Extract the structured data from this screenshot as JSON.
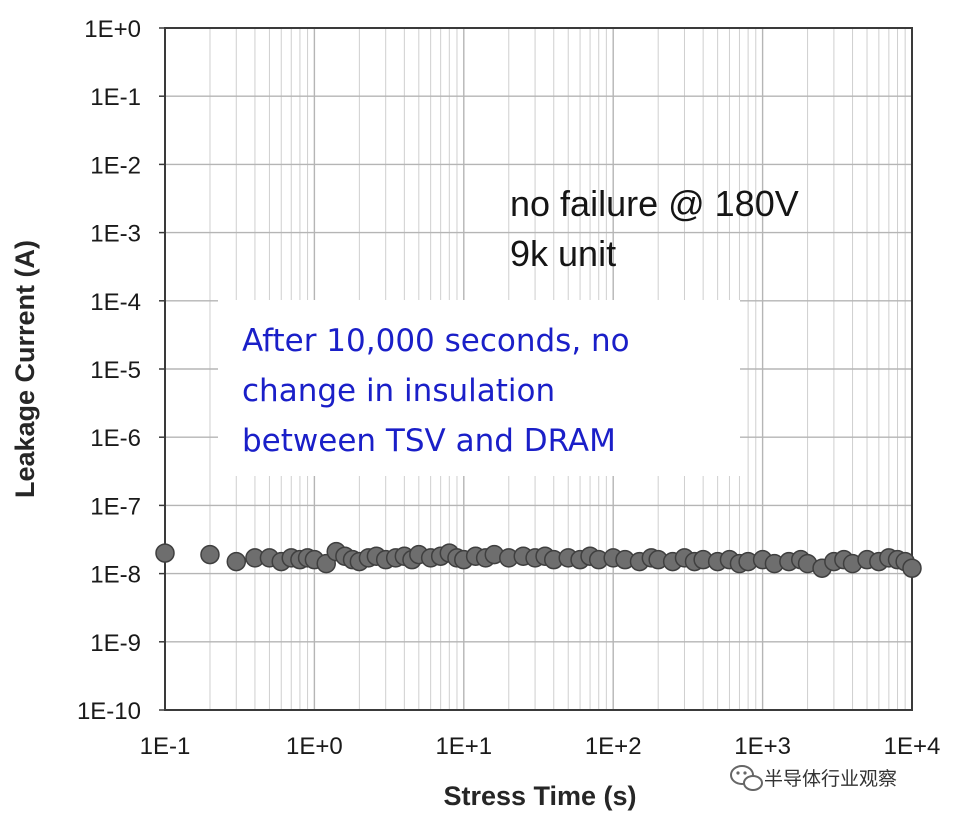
{
  "chart_data": {
    "type": "scatter",
    "xlabel": "Stress Time (s)",
    "ylabel": "Leakage Current (A)",
    "x_scale": "log",
    "y_scale": "log",
    "xlim": [
      0.1,
      10000
    ],
    "ylim": [
      1e-10,
      1
    ],
    "x_ticks": [
      {
        "value": 0.1,
        "label": "1E-1"
      },
      {
        "value": 1,
        "label": "1E+0"
      },
      {
        "value": 10,
        "label": "1E+1"
      },
      {
        "value": 100,
        "label": "1E+2"
      },
      {
        "value": 1000,
        "label": "1E+3"
      },
      {
        "value": 10000,
        "label": "1E+4"
      }
    ],
    "y_ticks": [
      {
        "value": 1,
        "label": "1E+0"
      },
      {
        "value": 0.1,
        "label": "1E-1"
      },
      {
        "value": 0.01,
        "label": "1E-2"
      },
      {
        "value": 0.001,
        "label": "1E-3"
      },
      {
        "value": 0.0001,
        "label": "1E-4"
      },
      {
        "value": 1e-05,
        "label": "1E-5"
      },
      {
        "value": 1e-06,
        "label": "1E-6"
      },
      {
        "value": 1e-07,
        "label": "1E-7"
      },
      {
        "value": 1e-08,
        "label": "1E-8"
      },
      {
        "value": 1e-09,
        "label": "1E-9"
      },
      {
        "value": 1e-10,
        "label": "1E-10"
      }
    ],
    "grid": true,
    "marker_color": "#6e6e6e",
    "annotations": {
      "note_line1": "no failure @ 180V",
      "note_line2": "9k unit",
      "callout_line1": "After 10,000 seconds, no",
      "callout_line2": "change in insulation",
      "callout_line3": "between TSV and DRAM",
      "callout_color": "#1a1fc8"
    },
    "series": [
      {
        "points": [
          [
            0.1,
            2e-08
          ],
          [
            0.2,
            1.9e-08
          ],
          [
            0.3,
            1.5e-08
          ],
          [
            0.4,
            1.7e-08
          ],
          [
            0.5,
            1.7e-08
          ],
          [
            0.6,
            1.5e-08
          ],
          [
            0.7,
            1.7e-08
          ],
          [
            0.8,
            1.6e-08
          ],
          [
            0.9,
            1.7e-08
          ],
          [
            1.0,
            1.6e-08
          ],
          [
            1.2,
            1.4e-08
          ],
          [
            1.4,
            2.1e-08
          ],
          [
            1.6,
            1.8e-08
          ],
          [
            1.8,
            1.6e-08
          ],
          [
            2.0,
            1.5e-08
          ],
          [
            2.3,
            1.7e-08
          ],
          [
            2.6,
            1.8e-08
          ],
          [
            3.0,
            1.6e-08
          ],
          [
            3.5,
            1.7e-08
          ],
          [
            4.0,
            1.8e-08
          ],
          [
            4.5,
            1.6e-08
          ],
          [
            5.0,
            1.9e-08
          ],
          [
            6.0,
            1.7e-08
          ],
          [
            7.0,
            1.8e-08
          ],
          [
            8.0,
            2e-08
          ],
          [
            9.0,
            1.7e-08
          ],
          [
            10,
            1.6e-08
          ],
          [
            12,
            1.8e-08
          ],
          [
            14,
            1.7e-08
          ],
          [
            16,
            1.9e-08
          ],
          [
            20,
            1.7e-08
          ],
          [
            25,
            1.8e-08
          ],
          [
            30,
            1.7e-08
          ],
          [
            35,
            1.8e-08
          ],
          [
            40,
            1.6e-08
          ],
          [
            50,
            1.7e-08
          ],
          [
            60,
            1.6e-08
          ],
          [
            70,
            1.8e-08
          ],
          [
            80,
            1.6e-08
          ],
          [
            100,
            1.7e-08
          ],
          [
            120,
            1.6e-08
          ],
          [
            150,
            1.5e-08
          ],
          [
            180,
            1.7e-08
          ],
          [
            200,
            1.6e-08
          ],
          [
            250,
            1.5e-08
          ],
          [
            300,
            1.7e-08
          ],
          [
            350,
            1.5e-08
          ],
          [
            400,
            1.6e-08
          ],
          [
            500,
            1.5e-08
          ],
          [
            600,
            1.6e-08
          ],
          [
            700,
            1.4e-08
          ],
          [
            800,
            1.5e-08
          ],
          [
            1000,
            1.6e-08
          ],
          [
            1200,
            1.4e-08
          ],
          [
            1500,
            1.5e-08
          ],
          [
            1800,
            1.6e-08
          ],
          [
            2000,
            1.4e-08
          ],
          [
            2500,
            1.2e-08
          ],
          [
            3000,
            1.5e-08
          ],
          [
            3500,
            1.6e-08
          ],
          [
            4000,
            1.4e-08
          ],
          [
            5000,
            1.6e-08
          ],
          [
            6000,
            1.5e-08
          ],
          [
            7000,
            1.7e-08
          ],
          [
            8000,
            1.6e-08
          ],
          [
            9000,
            1.5e-08
          ],
          [
            10000,
            1.2e-08
          ]
        ]
      }
    ]
  },
  "watermark": {
    "text": "半导体行业观察",
    "icon": "wechat-icon"
  }
}
